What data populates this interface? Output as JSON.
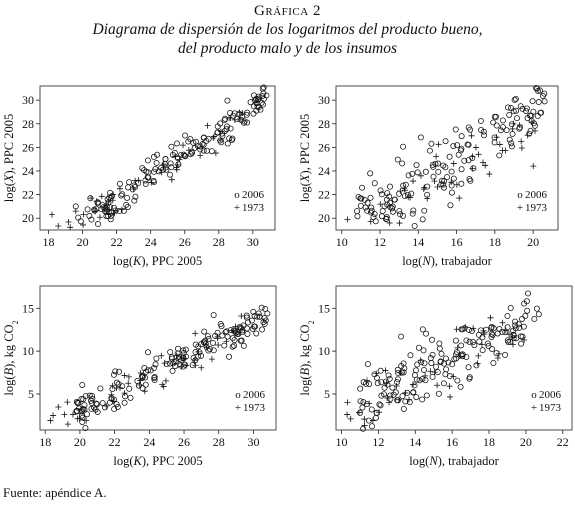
{
  "header": {
    "label": "Gráfica 2",
    "title_line1": "Diagrama de dispersión de los logaritmos del producto bueno,",
    "title_line2": "del producto malo y de los insumos"
  },
  "source": "Fuente: apéndice A.",
  "legend_markers": {
    "circle": "o",
    "plus": "+"
  },
  "chart_data": [
    {
      "type": "scatter",
      "xlabel": "log(K), PPC 2005",
      "ylabel": "log(X), PPC 2005",
      "xlim": [
        17.5,
        31.3
      ],
      "ylim": [
        19.0,
        31.2
      ],
      "xticks": [
        18,
        20,
        22,
        24,
        26,
        28,
        30
      ],
      "yticks": [
        20,
        22,
        24,
        26,
        28,
        30
      ],
      "series": [
        {
          "name": "2006",
          "marker": "circle",
          "n": 170,
          "slope": 1.0,
          "intercept": -0.5,
          "noise": 0.75,
          "xmin": 19.6,
          "xmax": 30.8,
          "ext": [
            [
              30.2,
              30.1
            ],
            [
              30.8,
              30.4
            ],
            [
              20.4,
              20.2
            ],
            [
              19.6,
              21.0
            ]
          ]
        },
        {
          "name": "1973",
          "marker": "plus",
          "n": 45,
          "slope": 1.0,
          "intercept": -0.6,
          "noise": 0.8,
          "xmin": 18.2,
          "xmax": 29.4,
          "ext": [
            [
              18.2,
              20.3
            ],
            [
              19.6,
              20.6
            ],
            [
              20.5,
              21.7
            ],
            [
              29.4,
              28.9
            ]
          ]
        }
      ]
    },
    {
      "type": "scatter",
      "xlabel": "log(N), trabajador",
      "ylabel": "log(X), PPC 2005",
      "xlim": [
        9.7,
        21.3
      ],
      "ylim": [
        19.0,
        31.2
      ],
      "xticks": [
        10,
        12,
        14,
        16,
        18,
        20
      ],
      "yticks": [
        20,
        22,
        24,
        26,
        28,
        30
      ],
      "series": [
        {
          "name": "2006",
          "marker": "circle",
          "n": 170,
          "slope": 1.05,
          "intercept": 8.4,
          "noise": 1.4,
          "xmin": 10.8,
          "xmax": 20.6,
          "ext": [
            [
              20.6,
              29.9
            ],
            [
              19.1,
              30.1
            ],
            [
              10.8,
              20.6
            ]
          ]
        },
        {
          "name": "1973",
          "marker": "plus",
          "n": 45,
          "slope": 1.0,
          "intercept": 8.2,
          "noise": 1.3,
          "xmin": 10.3,
          "xmax": 20.1,
          "ext": [
            [
              10.3,
              19.9
            ],
            [
              12.5,
              19.6
            ],
            [
              20.1,
              27.4
            ]
          ]
        }
      ]
    },
    {
      "type": "scatter",
      "xlabel": "log(K), PPC 2005",
      "ylabel": "log(B), kg CO2",
      "xlim": [
        17.7,
        31.3
      ],
      "ylim": [
        0.8,
        17.6
      ],
      "xticks": [
        18,
        20,
        22,
        24,
        26,
        28,
        30
      ],
      "yticks": [
        5,
        10,
        15
      ],
      "series": [
        {
          "name": "2006",
          "marker": "circle",
          "n": 170,
          "slope": 1.04,
          "intercept": -17.6,
          "noise": 1.1,
          "xmin": 19.8,
          "xmax": 30.8,
          "ext": [
            [
              30.8,
              14.4
            ],
            [
              30.3,
              14.4
            ],
            [
              19.8,
              3.0
            ]
          ]
        },
        {
          "name": "1973",
          "marker": "plus",
          "n": 45,
          "slope": 1.04,
          "intercept": -17.9,
          "noise": 1.2,
          "xmin": 18.3,
          "xmax": 29.3,
          "ext": [
            [
              18.3,
              1.9
            ],
            [
              19.6,
              2.6
            ],
            [
              29.3,
              14.1
            ]
          ]
        }
      ]
    },
    {
      "type": "scatter",
      "xlabel": "log(N), trabajador",
      "ylabel": "log(B), kg CO2",
      "xlim": [
        9.7,
        22.5
      ],
      "ylim": [
        0.8,
        17.6
      ],
      "xticks": [
        10,
        12,
        14,
        16,
        18,
        20,
        22
      ],
      "yticks": [
        5,
        10,
        15
      ],
      "series": [
        {
          "name": "2006",
          "marker": "circle",
          "n": 170,
          "slope": 1.1,
          "intercept": -8.4,
          "noise": 1.9,
          "xmin": 11.0,
          "xmax": 20.7,
          "ext": [
            [
              20.7,
              14.3
            ],
            [
              19.0,
              14.1
            ],
            [
              11.0,
              2.8
            ]
          ]
        },
        {
          "name": "1973",
          "marker": "plus",
          "n": 45,
          "slope": 1.05,
          "intercept": -8.0,
          "noise": 1.8,
          "xmin": 10.3,
          "xmax": 19.9,
          "ext": [
            [
              10.3,
              2.6
            ],
            [
              19.9,
              11.3
            ],
            [
              11.7,
              1.9
            ]
          ]
        }
      ]
    }
  ]
}
